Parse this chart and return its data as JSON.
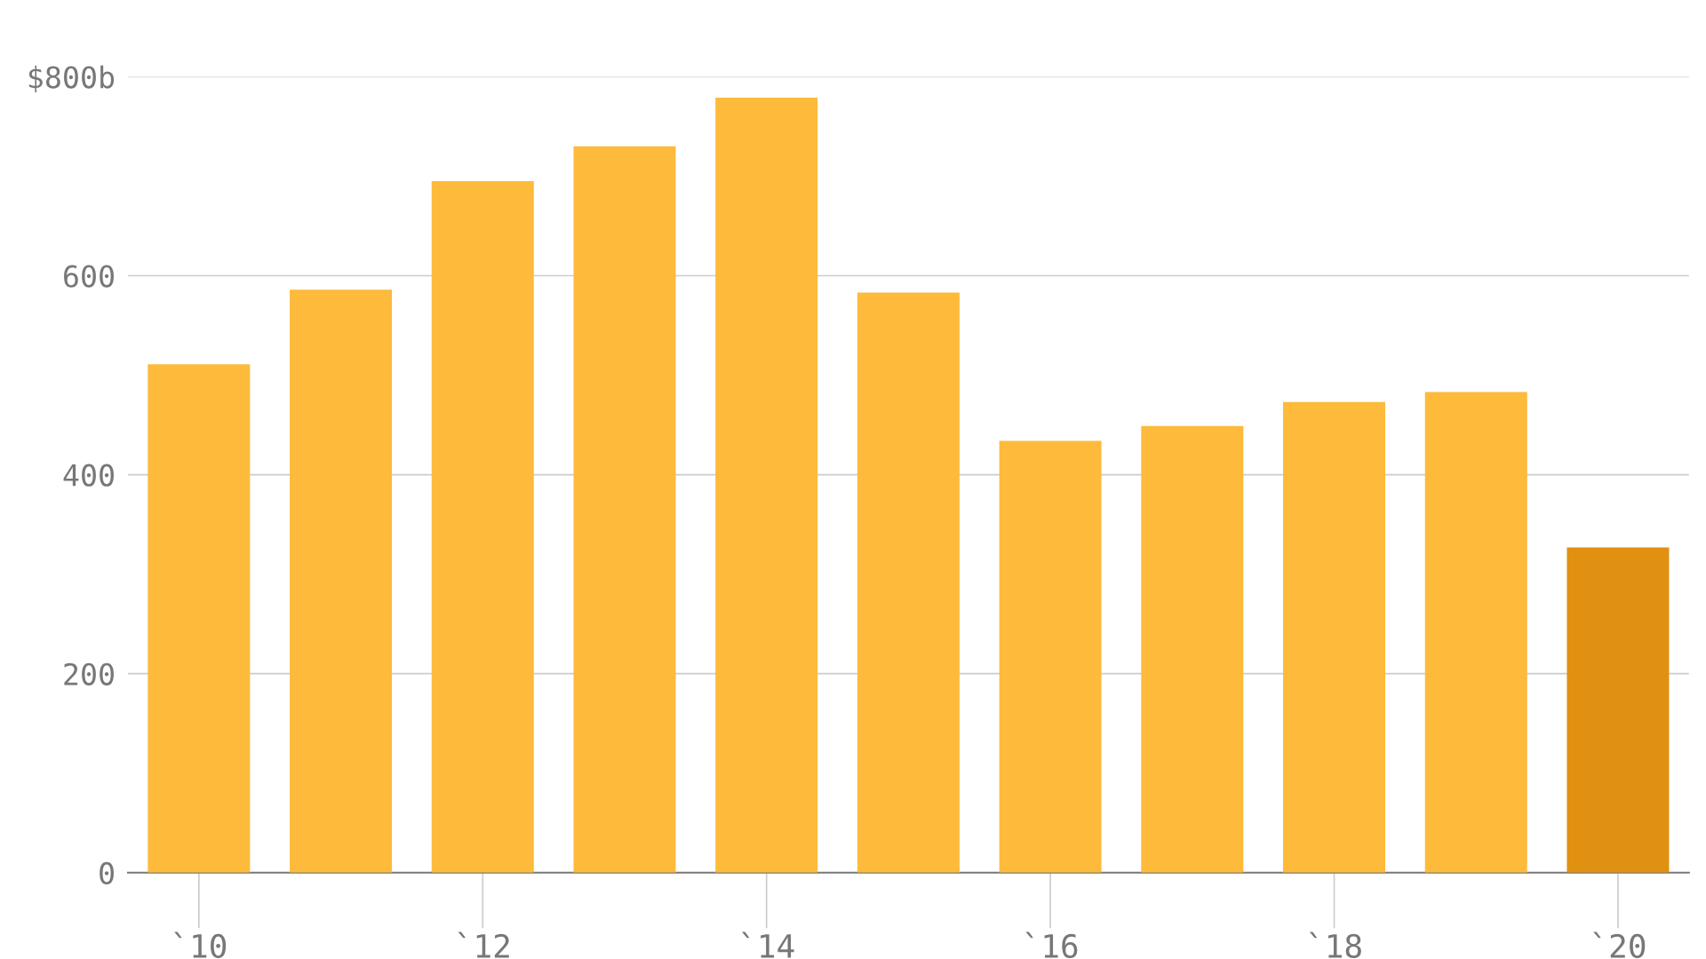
{
  "chart_data": {
    "type": "bar",
    "categories": [
      "`10",
      null,
      "`12",
      null,
      "`14",
      null,
      "`16",
      null,
      "`18",
      null,
      "`20"
    ],
    "values": [
      511,
      586,
      695,
      730,
      779,
      583,
      434,
      449,
      473,
      483,
      327
    ],
    "colors": [
      "#fdba3b",
      "#fdba3b",
      "#fdba3b",
      "#fdba3b",
      "#fdba3b",
      "#fdba3b",
      "#fdba3b",
      "#fdba3b",
      "#fdba3b",
      "#fdba3b",
      "#e09112"
    ],
    "ylim": [
      0,
      800
    ],
    "yticks": [
      0,
      200,
      400,
      600,
      {
        "value": 800,
        "label": "$800b"
      }
    ],
    "grid": "y",
    "legend": false
  }
}
